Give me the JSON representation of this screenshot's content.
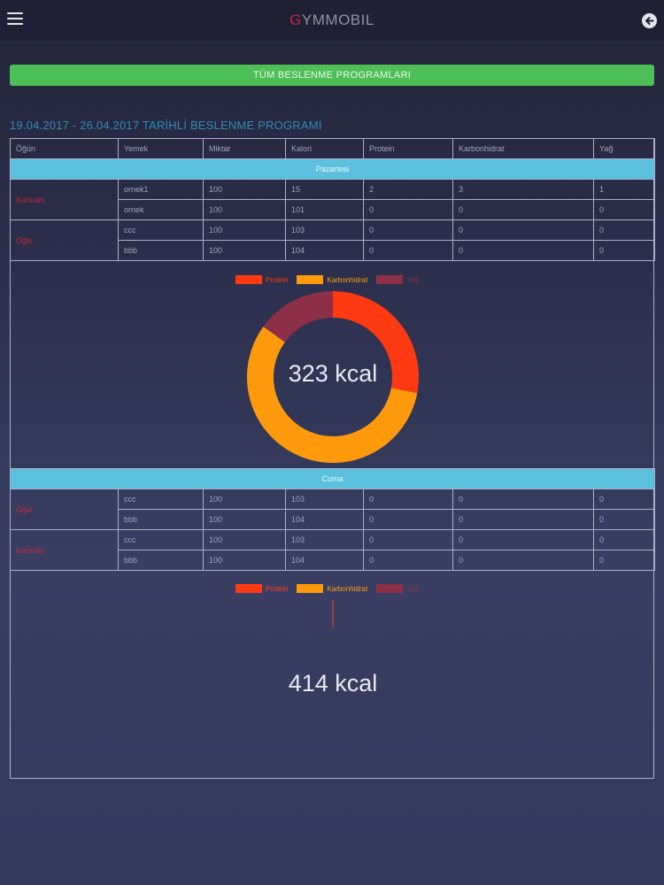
{
  "header": {
    "brand_first": "G",
    "brand_rest": "YMMOBIL",
    "menu_icon": "hamburger-menu-icon",
    "back_icon": "back-arrow-icon"
  },
  "all_programs_button": "TÜM BESLENME PROGRAMLARI",
  "program_title": "19.04.2017 - 26.04.2017 TARİHLİ BESLENME PROGRAMI",
  "columns": [
    "Öğün",
    "Yemek",
    "Miktar",
    "Kalori",
    "Protein",
    "Karbonhidrat",
    "Yağ"
  ],
  "days": [
    {
      "name": "Pazartesi",
      "meals": [
        {
          "meal": "Kahvaltı",
          "rows": [
            [
              "ornek1",
              "100",
              "15",
              "2",
              "3",
              "1"
            ],
            [
              "ornek",
              "100",
              "101",
              "0",
              "0",
              "0"
            ]
          ]
        },
        {
          "meal": "Öğle",
          "rows": [
            [
              "ccc",
              "100",
              "103",
              "0",
              "0",
              "0"
            ],
            [
              "bbb",
              "100",
              "104",
              "0",
              "0",
              "0"
            ]
          ]
        }
      ],
      "total_kcal": "323 kcal"
    },
    {
      "name": "Cuma",
      "meals": [
        {
          "meal": "Öğle",
          "rows": [
            [
              "ccc",
              "100",
              "103",
              "0",
              "0",
              "0"
            ],
            [
              "bbb",
              "100",
              "104",
              "0",
              "0",
              "0"
            ]
          ]
        },
        {
          "meal": "Kahvaltı",
          "rows": [
            [
              "ccc",
              "100",
              "103",
              "0",
              "0",
              "0"
            ],
            [
              "bbb",
              "100",
              "104",
              "0",
              "0",
              "0"
            ]
          ]
        }
      ],
      "total_kcal": "414 kcal"
    }
  ],
  "legend": [
    {
      "label": "Protein",
      "color": "#ff3a12"
    },
    {
      "label": "Karbonhidrat",
      "color": "#ff9a0c"
    },
    {
      "label": "Yağ",
      "color": "#8e2f48"
    }
  ],
  "chart_data": [
    {
      "type": "pie",
      "categories": [
        "Protein",
        "Karbonhidrat",
        "Yağ"
      ],
      "values": [
        28,
        57,
        15
      ],
      "title": "323 kcal"
    },
    {
      "type": "pie",
      "categories": [
        "Protein",
        "Karbonhidrat",
        "Yağ"
      ],
      "values": [
        0,
        0,
        0
      ],
      "title": "414 kcal"
    }
  ]
}
